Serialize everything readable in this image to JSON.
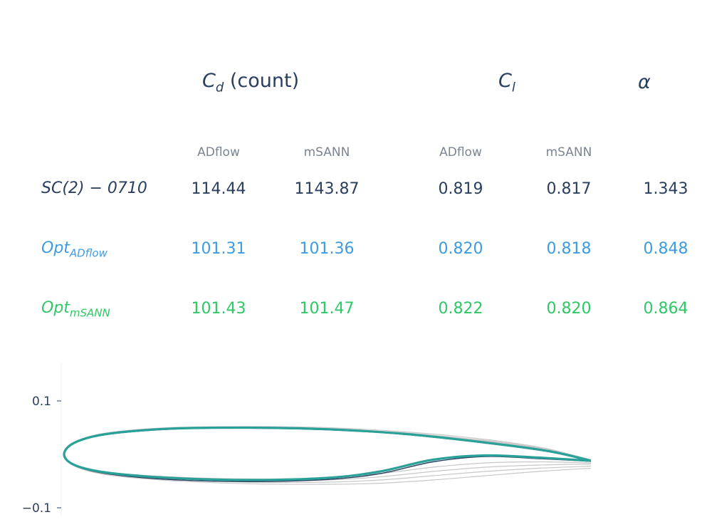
{
  "table": {
    "headers": {
      "cd": {
        "symbol": "C",
        "sub": "d",
        "suffix": " (count)"
      },
      "cl": {
        "symbol": "C",
        "sub": "l"
      },
      "alpha": "α"
    },
    "subheaders": [
      "ADflow",
      "mSANN",
      "ADflow",
      "mSANN"
    ],
    "rows": [
      {
        "label_main": "SC(2) − 0710",
        "label_sub": "",
        "cd_adflow": "114.44",
        "cd_msann": "1143.87",
        "cl_adflow": "0.819",
        "cl_msann": "0.817",
        "alpha": "1.343"
      },
      {
        "label_main": "Opt",
        "label_sub": "ADflow",
        "cd_adflow": "101.31",
        "cd_msann": "101.36",
        "cl_adflow": "0.820",
        "cl_msann": "0.818",
        "alpha": "0.848"
      },
      {
        "label_main": "Opt",
        "label_sub": "mSANN",
        "cd_adflow": "101.43",
        "cd_msann": "101.47",
        "cl_adflow": "0.822",
        "cl_msann": "0.820",
        "alpha": "0.864"
      }
    ]
  },
  "colors": {
    "dark": "#2a3f5f",
    "blue": "#3d9be0",
    "green": "#2ec866",
    "teal": "#2aa198",
    "gray": "#c8c8c8"
  },
  "chart_data": {
    "type": "line",
    "title": "",
    "xlabel": "",
    "ylabel": "",
    "ylim": [
      -0.1,
      0.1
    ],
    "yticks": [
      "0.1",
      "−0.1"
    ],
    "xlim": [
      0,
      1
    ],
    "series": [
      {
        "role": "optimized-teal",
        "upper": [
          [
            0,
            0.0
          ],
          [
            0.02,
            0.022
          ],
          [
            0.08,
            0.038
          ],
          [
            0.2,
            0.048
          ],
          [
            0.35,
            0.05
          ],
          [
            0.5,
            0.047
          ],
          [
            0.65,
            0.038
          ],
          [
            0.8,
            0.022
          ],
          [
            0.92,
            0.006
          ],
          [
            1.0,
            -0.012
          ]
        ],
        "lower": [
          [
            0,
            0.0
          ],
          [
            0.02,
            -0.02
          ],
          [
            0.08,
            -0.034
          ],
          [
            0.2,
            -0.044
          ],
          [
            0.35,
            -0.048
          ],
          [
            0.5,
            -0.044
          ],
          [
            0.6,
            -0.032
          ],
          [
            0.7,
            -0.01
          ],
          [
            0.8,
            -0.002
          ],
          [
            0.9,
            -0.006
          ],
          [
            1.0,
            -0.012
          ]
        ]
      },
      {
        "role": "baseline-dark",
        "upper": [
          [
            0,
            0.0
          ],
          [
            0.02,
            0.021
          ],
          [
            0.08,
            0.037
          ],
          [
            0.2,
            0.047
          ],
          [
            0.35,
            0.049
          ],
          [
            0.5,
            0.046
          ],
          [
            0.65,
            0.037
          ],
          [
            0.8,
            0.021
          ],
          [
            0.92,
            0.005
          ],
          [
            1.0,
            -0.013
          ]
        ],
        "lower": [
          [
            0,
            0.0
          ],
          [
            0.02,
            -0.021
          ],
          [
            0.08,
            -0.036
          ],
          [
            0.2,
            -0.047
          ],
          [
            0.35,
            -0.051
          ],
          [
            0.5,
            -0.047
          ],
          [
            0.6,
            -0.036
          ],
          [
            0.7,
            -0.014
          ],
          [
            0.8,
            -0.004
          ],
          [
            0.9,
            -0.008
          ],
          [
            1.0,
            -0.013
          ]
        ]
      },
      {
        "role": "gray-1",
        "upper": [
          [
            0,
            0.0
          ],
          [
            0.02,
            0.023
          ],
          [
            0.08,
            0.04
          ],
          [
            0.2,
            0.05
          ],
          [
            0.35,
            0.052
          ],
          [
            0.5,
            0.05
          ],
          [
            0.65,
            0.042
          ],
          [
            0.8,
            0.028
          ],
          [
            0.92,
            0.01
          ],
          [
            1.0,
            -0.012
          ]
        ],
        "lower": [
          [
            0,
            0.0
          ],
          [
            0.02,
            -0.02
          ],
          [
            0.08,
            -0.033
          ],
          [
            0.2,
            -0.042
          ],
          [
            0.35,
            -0.046
          ],
          [
            0.5,
            -0.044
          ],
          [
            0.6,
            -0.036
          ],
          [
            0.7,
            -0.024
          ],
          [
            0.8,
            -0.016
          ],
          [
            0.9,
            -0.014
          ],
          [
            1.0,
            -0.016
          ]
        ]
      },
      {
        "role": "gray-2",
        "upper": [
          [
            0,
            0.0
          ],
          [
            0.02,
            0.022
          ],
          [
            0.08,
            0.039
          ],
          [
            0.2,
            0.049
          ],
          [
            0.35,
            0.051
          ],
          [
            0.5,
            0.048
          ],
          [
            0.65,
            0.04
          ],
          [
            0.8,
            0.025
          ],
          [
            0.92,
            0.008
          ],
          [
            1.0,
            -0.014
          ]
        ],
        "lower": [
          [
            0,
            0.0
          ],
          [
            0.02,
            -0.021
          ],
          [
            0.08,
            -0.035
          ],
          [
            0.2,
            -0.045
          ],
          [
            0.35,
            -0.049
          ],
          [
            0.5,
            -0.048
          ],
          [
            0.6,
            -0.042
          ],
          [
            0.7,
            -0.032
          ],
          [
            0.8,
            -0.024
          ],
          [
            0.9,
            -0.02
          ],
          [
            1.0,
            -0.018
          ]
        ]
      },
      {
        "role": "gray-3",
        "upper": [
          [
            0,
            0.0
          ],
          [
            0.02,
            0.022
          ],
          [
            0.08,
            0.038
          ],
          [
            0.2,
            0.048
          ],
          [
            0.35,
            0.05
          ],
          [
            0.5,
            0.047
          ],
          [
            0.65,
            0.039
          ],
          [
            0.8,
            0.026
          ],
          [
            0.92,
            0.009
          ],
          [
            1.0,
            -0.01
          ]
        ],
        "lower": [
          [
            0,
            0.0
          ],
          [
            0.02,
            -0.022
          ],
          [
            0.08,
            -0.037
          ],
          [
            0.2,
            -0.047
          ],
          [
            0.35,
            -0.052
          ],
          [
            0.5,
            -0.052
          ],
          [
            0.6,
            -0.048
          ],
          [
            0.7,
            -0.04
          ],
          [
            0.8,
            -0.032
          ],
          [
            0.9,
            -0.026
          ],
          [
            1.0,
            -0.022
          ]
        ]
      },
      {
        "role": "gray-4",
        "upper": [
          [
            0,
            0.0
          ],
          [
            0.02,
            0.021
          ],
          [
            0.08,
            0.037
          ],
          [
            0.2,
            0.047
          ],
          [
            0.35,
            0.05
          ],
          [
            0.5,
            0.047
          ],
          [
            0.65,
            0.039
          ],
          [
            0.8,
            0.024
          ],
          [
            0.92,
            0.006
          ],
          [
            1.0,
            -0.011
          ]
        ],
        "lower": [
          [
            0,
            0.0
          ],
          [
            0.02,
            -0.022
          ],
          [
            0.08,
            -0.038
          ],
          [
            0.2,
            -0.049
          ],
          [
            0.35,
            -0.055
          ],
          [
            0.5,
            -0.056
          ],
          [
            0.6,
            -0.054
          ],
          [
            0.7,
            -0.048
          ],
          [
            0.8,
            -0.04
          ],
          [
            0.9,
            -0.032
          ],
          [
            1.0,
            -0.026
          ]
        ]
      }
    ]
  }
}
